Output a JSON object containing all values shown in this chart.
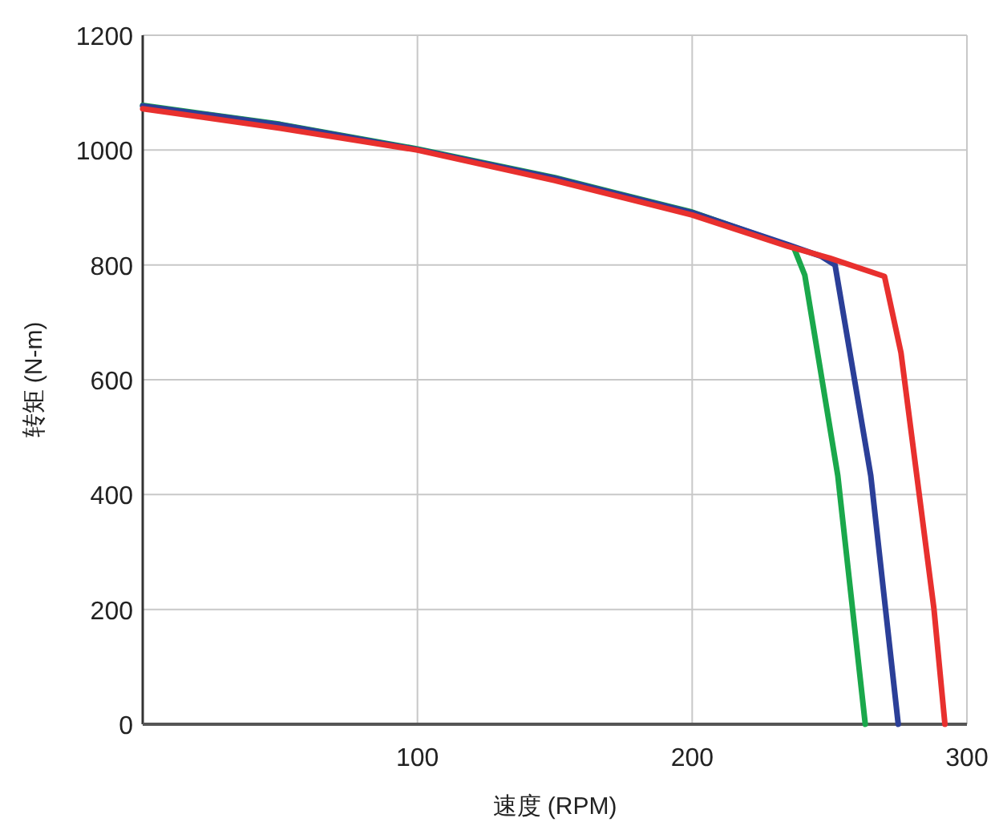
{
  "chart_data": {
    "type": "line",
    "xlabel": "速度 (RPM)",
    "ylabel": "转矩 (N-m)",
    "xlim": [
      0,
      300
    ],
    "ylim": [
      0,
      1200
    ],
    "xticks": [
      100,
      200,
      300
    ],
    "yticks": [
      0,
      200,
      400,
      600,
      800,
      1000,
      1200
    ],
    "grid": true,
    "series": [
      {
        "color": "#1aa84b",
        "x": [
          0,
          50,
          100,
          150,
          200,
          237,
          241,
          253,
          263
        ],
        "values": [
          1078,
          1045,
          1002,
          952,
          892,
          830,
          782,
          433,
          0
        ]
      },
      {
        "color": "#2b3f98",
        "x": [
          0,
          50,
          100,
          150,
          200,
          235,
          247,
          252,
          265,
          275
        ],
        "values": [
          1077,
          1044,
          1001,
          951,
          891,
          835,
          815,
          800,
          433,
          0
        ]
      },
      {
        "color": "#e8302e",
        "x": [
          0,
          50,
          100,
          150,
          200,
          235,
          250,
          270,
          276,
          288,
          292
        ],
        "values": [
          1072,
          1038,
          1000,
          947,
          887,
          832,
          812,
          780,
          647,
          201,
          0
        ]
      }
    ]
  }
}
